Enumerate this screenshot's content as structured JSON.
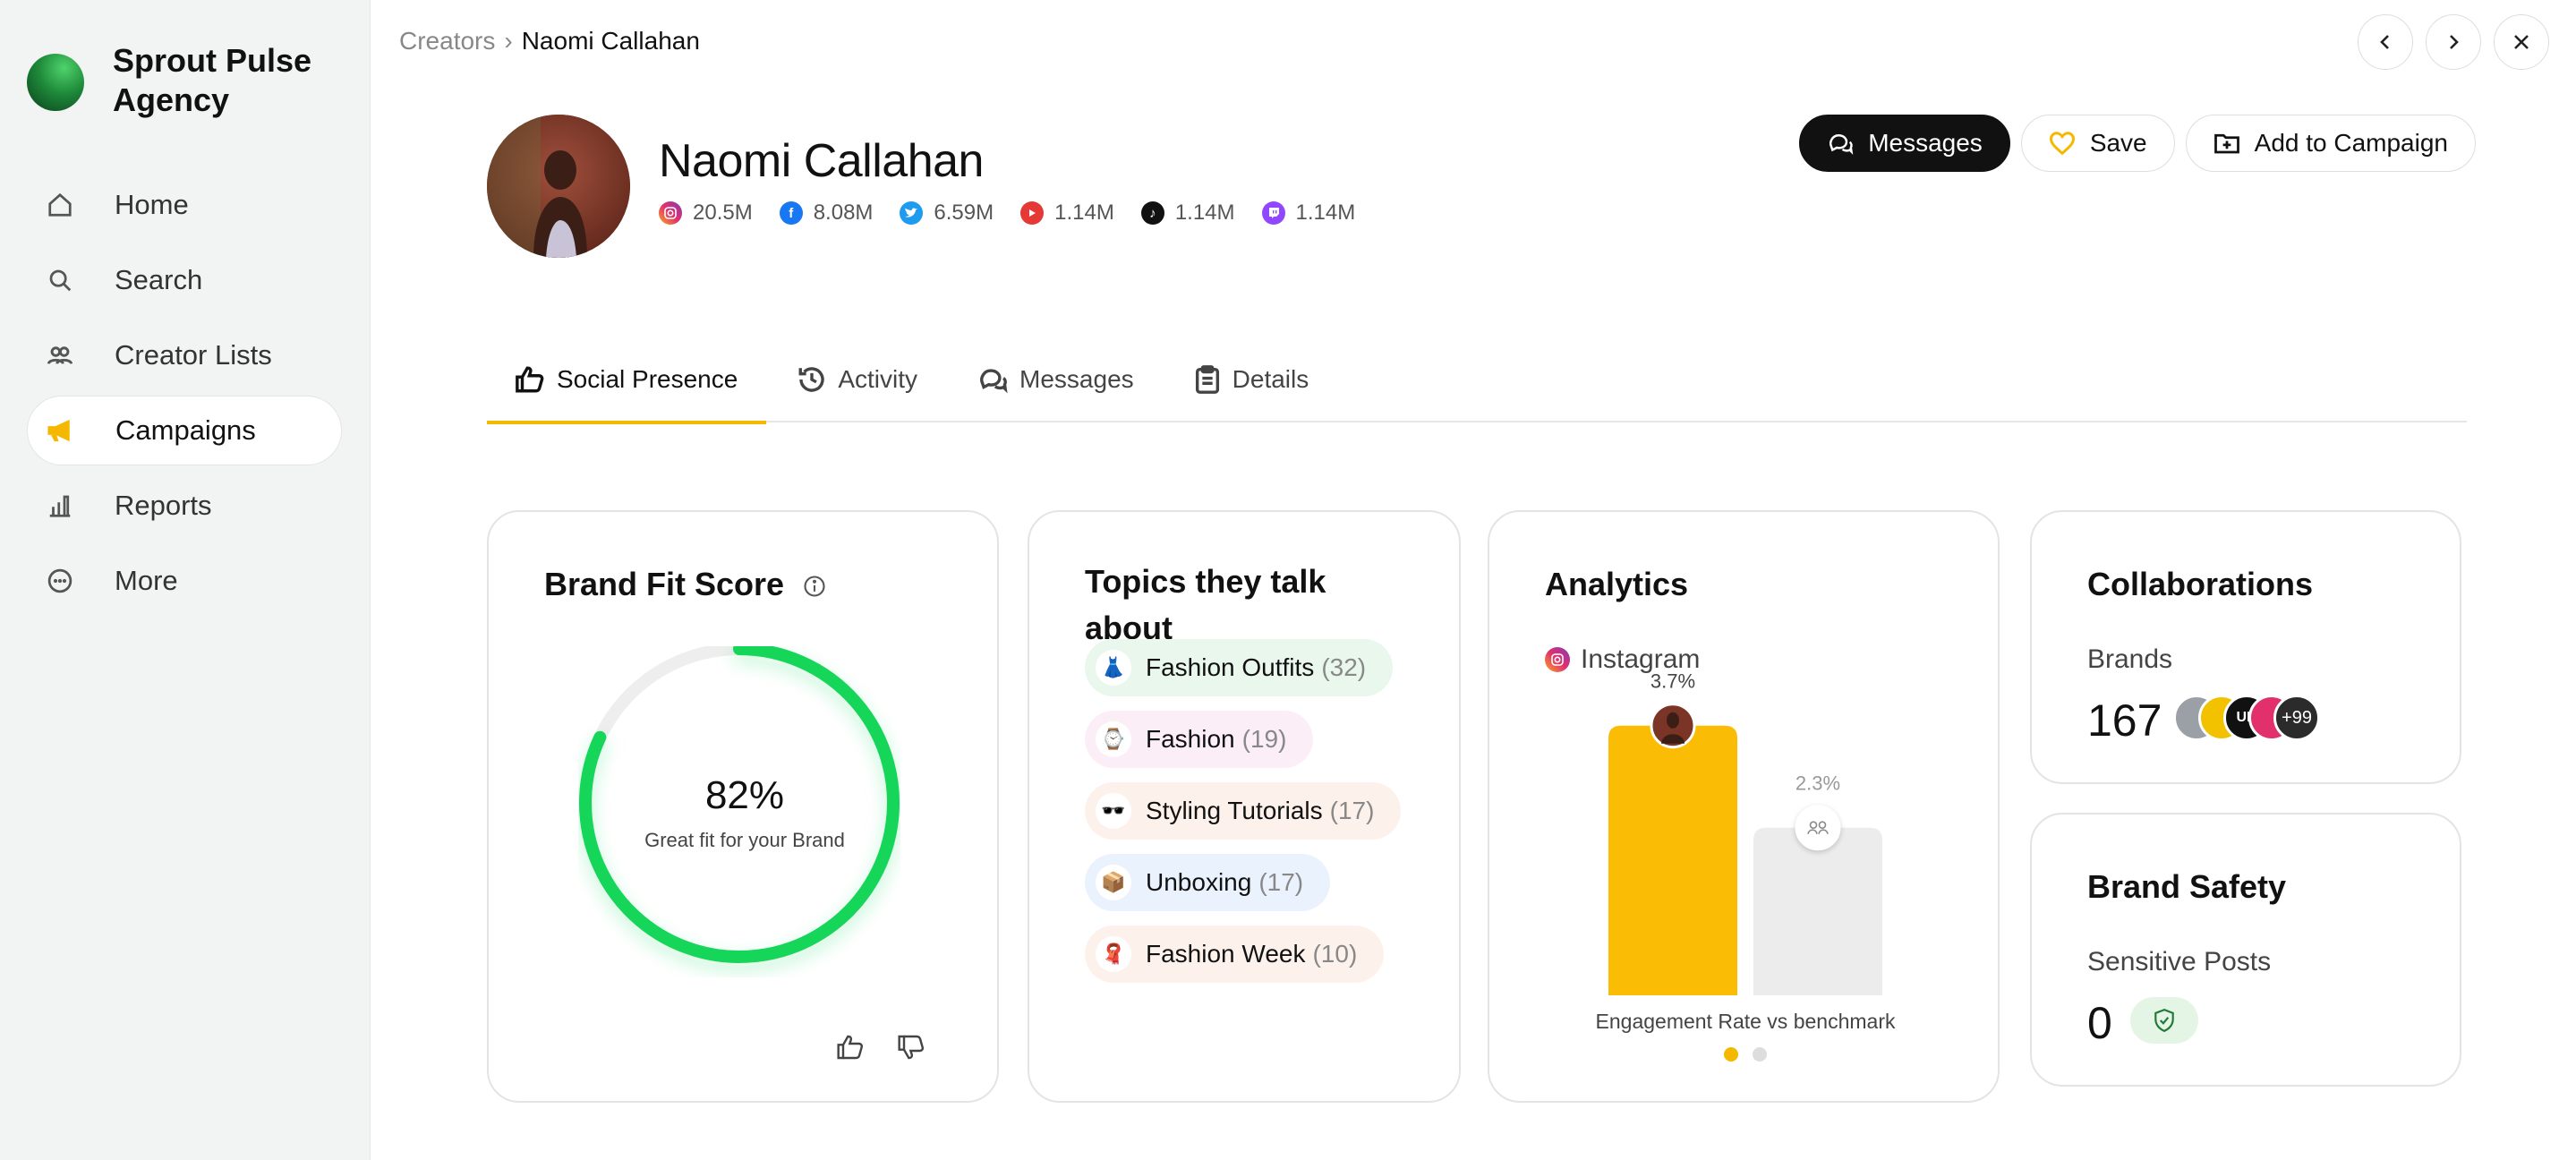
{
  "app": {
    "name": "Sprout Pulse Agency"
  },
  "sidebar": {
    "items": [
      {
        "label": "Home",
        "icon": "home-icon",
        "active": false
      },
      {
        "label": "Search",
        "icon": "search-icon",
        "active": false
      },
      {
        "label": "Creator Lists",
        "icon": "users-icon",
        "active": false
      },
      {
        "label": "Campaigns",
        "icon": "megaphone-icon",
        "active": true
      },
      {
        "label": "Reports",
        "icon": "bar-chart-icon",
        "active": false
      },
      {
        "label": "More",
        "icon": "more-circle-icon",
        "active": false
      }
    ]
  },
  "breadcrumb": {
    "parent": "Creators",
    "separator": "›",
    "current": "Naomi Callahan"
  },
  "profile": {
    "name": "Naomi Callahan",
    "socials": [
      {
        "platform": "instagram",
        "count": "20.5M",
        "color": "#d6336c"
      },
      {
        "platform": "facebook",
        "count": "8.08M",
        "color": "#1877f2"
      },
      {
        "platform": "twitter",
        "count": "6.59M",
        "color": "#1d9bf0"
      },
      {
        "platform": "youtube",
        "count": "1.14M",
        "color": "#e53935"
      },
      {
        "platform": "tiktok",
        "count": "1.14M",
        "color": "#111111"
      },
      {
        "platform": "twitch",
        "count": "1.14M",
        "color": "#9146ff"
      }
    ]
  },
  "actions": {
    "messages": "Messages",
    "save": "Save",
    "add_to_campaign": "Add to Campaign"
  },
  "tabs": [
    {
      "label": "Social Presence",
      "active": true
    },
    {
      "label": "Activity",
      "active": false
    },
    {
      "label": "Messages",
      "active": false
    },
    {
      "label": "Details",
      "active": false
    }
  ],
  "brand_fit": {
    "title": "Brand Fit Score",
    "score": "82%",
    "score_value": 0.82,
    "subtitle": "Great fit for your Brand",
    "accent": "#14d65a"
  },
  "topics": {
    "title": "Topics they talk about",
    "items": [
      {
        "emoji": "👗",
        "label": "Fashion Outfits",
        "count": "(32)",
        "bg": "#e9f7ec"
      },
      {
        "emoji": "⌚",
        "label": "Fashion",
        "count": "(19)",
        "bg": "#fbeef7"
      },
      {
        "emoji": "🕶️",
        "label": "Styling Tutorials",
        "count": "(17)",
        "bg": "#fdf1ec"
      },
      {
        "emoji": "📦",
        "label": "Unboxing",
        "count": "(17)",
        "bg": "#eaf2fd"
      },
      {
        "emoji": "🧣",
        "label": "Fashion Week",
        "count": "(10)",
        "bg": "#fdf1ec"
      }
    ]
  },
  "analytics": {
    "title": "Analytics",
    "platform": "Instagram",
    "caption": "Engagement Rate vs benchmark",
    "page_dots": 2,
    "active_dot": 0
  },
  "chart_data": {
    "type": "bar",
    "categories": [
      "Creator",
      "Benchmark"
    ],
    "values": [
      3.7,
      2.3
    ],
    "data_labels": [
      "3.7%",
      "2.3%"
    ],
    "colors": [
      "#fbbc05",
      "#ececec"
    ],
    "title": "",
    "xlabel": "Engagement Rate vs benchmark",
    "ylabel": "",
    "ylim": [
      0,
      4.2
    ],
    "grid": false
  },
  "collaborations": {
    "title": "Collaborations",
    "label": "Brands",
    "count": "167",
    "more": "+99",
    "brand_badges": [
      {
        "text": "",
        "color": "#9aa0a6"
      },
      {
        "text": "",
        "color": "#f2c200"
      },
      {
        "text": "UB",
        "color": "#111111"
      },
      {
        "text": "",
        "color": "#e1306c"
      }
    ]
  },
  "brand_safety": {
    "title": "Brand Safety",
    "label": "Sensitive Posts",
    "count": "0"
  }
}
